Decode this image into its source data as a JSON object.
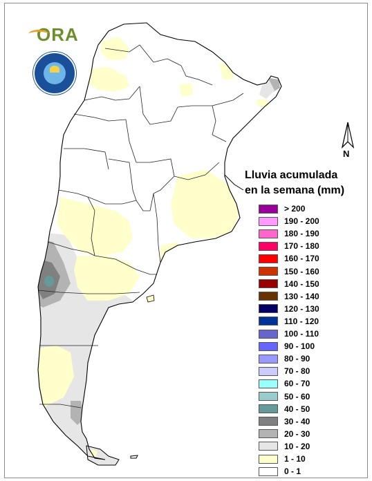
{
  "legend": {
    "title_line1": "Lluvia acumulada",
    "title_line2": "en la semana (mm)",
    "items": [
      {
        "label": "> 200",
        "color": "#990099"
      },
      {
        "label": "190 - 200",
        "color": "#ff99ff"
      },
      {
        "label": "180 - 190",
        "color": "#ff66cc"
      },
      {
        "label": "170 - 180",
        "color": "#ff0066"
      },
      {
        "label": "160 - 170",
        "color": "#ff0000"
      },
      {
        "label": "150 - 160",
        "color": "#cc3300"
      },
      {
        "label": "140 - 150",
        "color": "#990000"
      },
      {
        "label": "130 - 140",
        "color": "#663300"
      },
      {
        "label": "120 - 130",
        "color": "#000066"
      },
      {
        "label": "110 - 120",
        "color": "#003399"
      },
      {
        "label": "100 - 110",
        "color": "#6666cc"
      },
      {
        "label": "90 - 100",
        "color": "#6666ff"
      },
      {
        "label": "80 - 90",
        "color": "#9999ff"
      },
      {
        "label": "70 - 80",
        "color": "#ccccff"
      },
      {
        "label": "60 - 70",
        "color": "#99ffff"
      },
      {
        "label": "50 - 60",
        "color": "#99cccc"
      },
      {
        "label": "40 - 50",
        "color": "#669999"
      },
      {
        "label": "30 - 40",
        "color": "#808080"
      },
      {
        "label": "20 - 30",
        "color": "#b3b3b3"
      },
      {
        "label": "10 - 20",
        "color": "#e6e6e6"
      },
      {
        "label": "1 - 10",
        "color": "#ffffcc"
      },
      {
        "label": "0 - 1",
        "color": "#ffffff"
      }
    ]
  },
  "north_arrow": {
    "label": "N"
  },
  "logo": {
    "text": "ORA",
    "icon": "ora-logo-icon"
  },
  "seal": {
    "icon": "smn-seal-icon"
  },
  "map_colors": {
    "border": "#000000",
    "province_line": "#222222",
    "no_rain": "#ffffff",
    "light": "#ffffcc",
    "moderate": "#e6e6e6",
    "medium": "#b3b3b3",
    "heavy": "#808080",
    "peak": "#669999"
  }
}
